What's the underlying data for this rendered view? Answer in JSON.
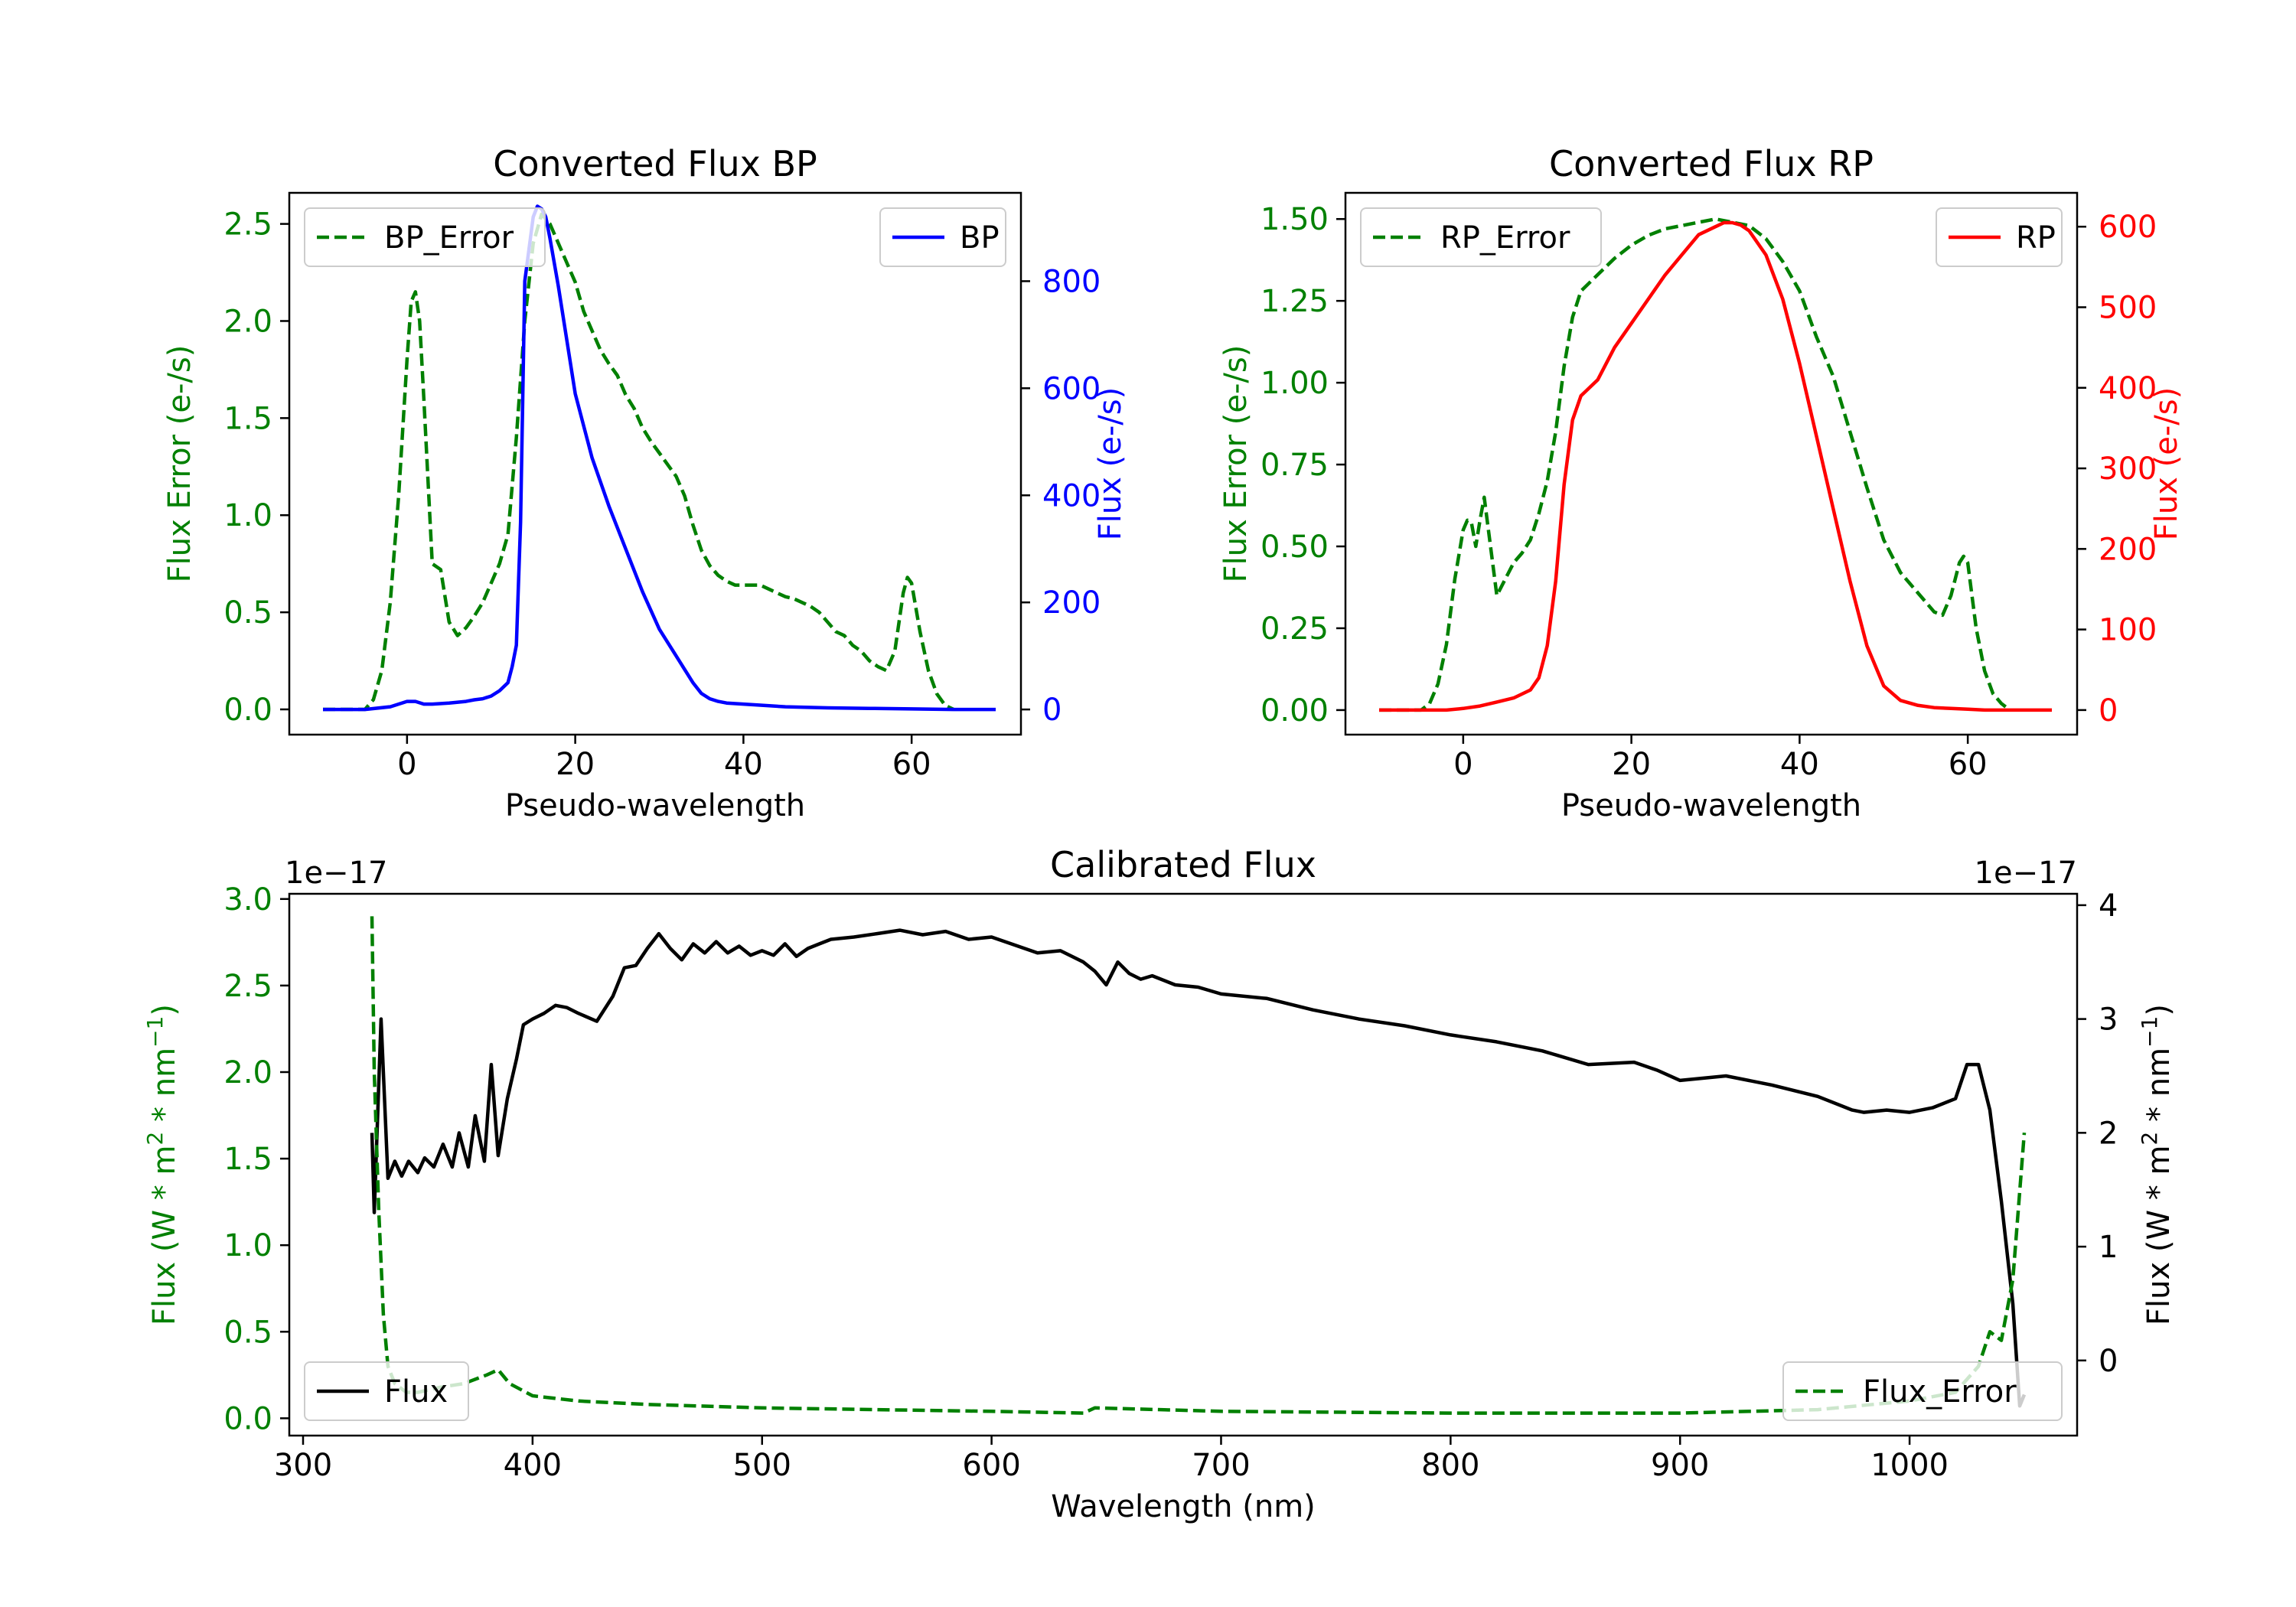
{
  "colors": {
    "axis": "#000000",
    "error": "#008000",
    "bp": "#0000ff",
    "rp": "#ff0000",
    "flux": "#000000"
  },
  "chart_data": [
    {
      "type": "line",
      "title": "Converted Flux BP",
      "xlabel": "Pseudo-wavelength",
      "xlim": [
        -14,
        73
      ],
      "xticks": [
        0,
        20,
        40,
        60
      ],
      "left_axis": {
        "label": "Flux Error (e-/s)",
        "ylim": [
          -0.13,
          2.66
        ],
        "ticks": [
          0.0,
          0.5,
          1.0,
          1.5,
          2.0,
          2.5
        ],
        "tick_labels": [
          "0.0",
          "0.5",
          "1.0",
          "1.5",
          "2.0",
          "2.5"
        ],
        "color": "error"
      },
      "right_axis": {
        "label": "Flux (e-/s)",
        "ylim": [
          -47,
          965
        ],
        "ticks": [
          0,
          200,
          400,
          600,
          800
        ],
        "tick_labels": [
          "0",
          "200",
          "400",
          "600",
          "800"
        ],
        "color": "bp"
      },
      "legend_left": {
        "label": "BP_Error",
        "position": "upper left",
        "style": "dashed"
      },
      "legend_right": {
        "label": "BP",
        "position": "upper right",
        "style": "solid"
      },
      "series": [
        {
          "name": "BP_Error",
          "axis": "left",
          "style": "dashed",
          "color": "error",
          "x": [
            -10,
            -5,
            -4,
            -3,
            -2,
            -1,
            0,
            0.5,
            1,
            1.5,
            2,
            3,
            4,
            5,
            6,
            7,
            8,
            9,
            10,
            11,
            12,
            13,
            14,
            15,
            16,
            17,
            18,
            19,
            20,
            21,
            22,
            23,
            24,
            25,
            26,
            27,
            28,
            29,
            30,
            31,
            32,
            33,
            34,
            35,
            36,
            37,
            38,
            39,
            40,
            41,
            42,
            43,
            44,
            45,
            46,
            47,
            48,
            49,
            50,
            51,
            52,
            53,
            54,
            55,
            56,
            57,
            58,
            59,
            59.5,
            60,
            61,
            62,
            63,
            64,
            65
          ],
          "values": [
            0,
            0,
            0.05,
            0.2,
            0.55,
            1.1,
            1.8,
            2.1,
            2.15,
            2.0,
            1.6,
            0.75,
            0.72,
            0.45,
            0.38,
            0.42,
            0.48,
            0.55,
            0.65,
            0.75,
            0.9,
            1.4,
            2.0,
            2.4,
            2.55,
            2.5,
            2.4,
            2.3,
            2.2,
            2.05,
            1.95,
            1.85,
            1.78,
            1.72,
            1.62,
            1.55,
            1.45,
            1.38,
            1.32,
            1.26,
            1.2,
            1.1,
            0.95,
            0.82,
            0.74,
            0.69,
            0.66,
            0.64,
            0.64,
            0.64,
            0.64,
            0.62,
            0.6,
            0.58,
            0.57,
            0.55,
            0.53,
            0.5,
            0.45,
            0.4,
            0.38,
            0.33,
            0.3,
            0.25,
            0.22,
            0.2,
            0.3,
            0.6,
            0.68,
            0.65,
            0.4,
            0.2,
            0.08,
            0.02,
            0.0
          ]
        },
        {
          "name": "BP",
          "axis": "right",
          "style": "solid",
          "color": "bp",
          "x": [
            -10,
            -5,
            -2,
            0,
            1,
            2,
            3,
            5,
            7,
            8,
            9,
            10,
            11,
            12,
            12.5,
            13,
            13.5,
            14,
            15,
            15.5,
            16,
            16.5,
            17,
            18,
            19,
            20,
            22,
            24,
            26,
            28,
            30,
            32,
            34,
            35,
            36,
            37,
            38,
            40,
            42,
            45,
            50,
            55,
            60,
            65,
            70
          ],
          "values": [
            0,
            0,
            5,
            15,
            15,
            10,
            10,
            12,
            15,
            18,
            20,
            25,
            35,
            50,
            80,
            120,
            350,
            800,
            920,
            940,
            935,
            920,
            880,
            790,
            690,
            590,
            470,
            380,
            300,
            220,
            150,
            100,
            50,
            30,
            20,
            15,
            12,
            10,
            8,
            5,
            3,
            2,
            1,
            0,
            0
          ]
        }
      ]
    },
    {
      "type": "line",
      "title": "Converted Flux RP",
      "xlabel": "Pseudo-wavelength",
      "xlim": [
        -14,
        73
      ],
      "xticks": [
        0,
        20,
        40,
        60
      ],
      "left_axis": {
        "label": "Flux Error (e-/s)",
        "ylim": [
          -0.075,
          1.58
        ],
        "ticks": [
          0.0,
          0.25,
          0.5,
          0.75,
          1.0,
          1.25,
          1.5
        ],
        "tick_labels": [
          "0.00",
          "0.25",
          "0.50",
          "0.75",
          "1.00",
          "1.25",
          "1.50"
        ],
        "color": "error"
      },
      "right_axis": {
        "label": "Flux (e-/s)",
        "ylim": [
          -30.5,
          642
        ],
        "ticks": [
          0,
          100,
          200,
          300,
          400,
          500,
          600
        ],
        "tick_labels": [
          "0",
          "100",
          "200",
          "300",
          "400",
          "500",
          "600"
        ],
        "color": "rp"
      },
      "legend_left": {
        "label": "RP_Error",
        "position": "upper left",
        "style": "dashed"
      },
      "legend_right": {
        "label": "RP",
        "position": "upper right",
        "style": "solid"
      },
      "series": [
        {
          "name": "RP_Error",
          "axis": "left",
          "style": "dashed",
          "color": "error",
          "x": [
            -10,
            -5,
            -4,
            -3,
            -2,
            -1,
            0,
            0.5,
            1,
            1.5,
            2,
            2.5,
            3,
            4,
            5,
            6,
            7,
            8,
            9,
            10,
            11,
            12,
            13,
            14,
            16,
            18,
            20,
            22,
            24,
            26,
            28,
            30,
            32,
            34,
            36,
            38,
            40,
            42,
            44,
            46,
            48,
            50,
            52,
            54,
            55,
            56,
            57,
            58,
            58.5,
            59,
            59.5,
            60,
            61,
            62,
            63,
            64,
            65
          ],
          "values": [
            0,
            0,
            0.02,
            0.08,
            0.2,
            0.4,
            0.55,
            0.58,
            0.57,
            0.5,
            0.58,
            0.65,
            0.55,
            0.35,
            0.4,
            0.45,
            0.48,
            0.52,
            0.6,
            0.7,
            0.85,
            1.05,
            1.2,
            1.28,
            1.33,
            1.38,
            1.42,
            1.45,
            1.47,
            1.48,
            1.49,
            1.5,
            1.49,
            1.48,
            1.44,
            1.37,
            1.28,
            1.14,
            1.02,
            0.85,
            0.68,
            0.52,
            0.42,
            0.36,
            0.33,
            0.3,
            0.29,
            0.35,
            0.4,
            0.45,
            0.47,
            0.45,
            0.25,
            0.12,
            0.05,
            0.02,
            0.0
          ]
        },
        {
          "name": "RP",
          "axis": "right",
          "style": "solid",
          "color": "rp",
          "x": [
            -10,
            -5,
            -2,
            0,
            2,
            4,
            6,
            8,
            9,
            10,
            11,
            12,
            13,
            14,
            15,
            16,
            18,
            20,
            22,
            24,
            26,
            28,
            30,
            31,
            32,
            33,
            34,
            36,
            38,
            40,
            42,
            44,
            46,
            48,
            50,
            52,
            54,
            56,
            58,
            60,
            62,
            65,
            70
          ],
          "values": [
            0,
            0,
            0,
            2,
            5,
            10,
            15,
            25,
            40,
            80,
            160,
            280,
            360,
            390,
            400,
            410,
            450,
            480,
            510,
            540,
            565,
            590,
            600,
            605,
            605,
            602,
            595,
            565,
            510,
            430,
            340,
            250,
            160,
            80,
            30,
            12,
            6,
            3,
            2,
            1,
            0,
            0,
            0
          ]
        }
      ]
    },
    {
      "type": "line",
      "title": "Calibrated Flux",
      "xlabel": "Wavelength (nm)",
      "xlim": [
        294,
        1073
      ],
      "xticks": [
        300,
        400,
        500,
        600,
        700,
        800,
        900,
        1000
      ],
      "left_axis": {
        "label_parts": [
          "Flux (W * m",
          "2",
          " * nm",
          "−1",
          ")"
        ],
        "ylim": [
          -0.1,
          3.03
        ],
        "ticks": [
          0.0,
          0.5,
          1.0,
          1.5,
          2.0,
          2.5,
          3.0
        ],
        "tick_labels": [
          "0.0",
          "0.5",
          "1.0",
          "1.5",
          "2.0",
          "2.5",
          "3.0"
        ],
        "offset_text": "1e−17",
        "color": "error"
      },
      "right_axis": {
        "label_parts": [
          "Flux (W * m",
          "2",
          " * nm",
          "−1",
          ")"
        ],
        "ylim": [
          -0.66,
          4.1
        ],
        "ticks": [
          0,
          1,
          2,
          3,
          4
        ],
        "tick_labels": [
          "0",
          "1",
          "2",
          "3",
          "4"
        ],
        "offset_text": "1e−17",
        "color": "flux"
      },
      "legend_left": {
        "label": "Flux",
        "position": "lower left",
        "style": "solid"
      },
      "legend_right": {
        "label": "Flux_Error",
        "position": "lower right",
        "style": "dashed"
      },
      "series": [
        {
          "name": "Flux",
          "axis": "right",
          "style": "solid",
          "color": "flux",
          "x": [
            330,
            331,
            334,
            337,
            340,
            343,
            346,
            350,
            353,
            357,
            361,
            365,
            368,
            372,
            375,
            379,
            382,
            385,
            389,
            393,
            396,
            400,
            405,
            410,
            415,
            420,
            428,
            435,
            440,
            445,
            450,
            455,
            460,
            465,
            470,
            475,
            480,
            485,
            490,
            495,
            500,
            505,
            510,
            515,
            520,
            525,
            530,
            540,
            550,
            560,
            570,
            580,
            590,
            600,
            610,
            620,
            630,
            640,
            645,
            650,
            655,
            660,
            665,
            670,
            680,
            690,
            700,
            720,
            740,
            760,
            780,
            800,
            820,
            840,
            860,
            880,
            890,
            900,
            920,
            940,
            960,
            975,
            980,
            990,
            1000,
            1010,
            1020,
            1025,
            1030,
            1035,
            1040,
            1045,
            1048,
            1050
          ],
          "values": [
            2.0,
            1.3,
            3.0,
            1.6,
            1.75,
            1.62,
            1.75,
            1.65,
            1.78,
            1.7,
            1.9,
            1.7,
            2.0,
            1.7,
            2.15,
            1.75,
            2.6,
            1.8,
            2.3,
            2.65,
            2.95,
            3.0,
            3.05,
            3.12,
            3.1,
            3.05,
            2.98,
            3.2,
            3.45,
            3.47,
            3.62,
            3.75,
            3.62,
            3.52,
            3.66,
            3.58,
            3.68,
            3.58,
            3.64,
            3.56,
            3.6,
            3.56,
            3.66,
            3.55,
            3.62,
            3.66,
            3.7,
            3.72,
            3.75,
            3.78,
            3.74,
            3.77,
            3.7,
            3.72,
            3.65,
            3.58,
            3.6,
            3.5,
            3.42,
            3.3,
            3.5,
            3.4,
            3.35,
            3.38,
            3.3,
            3.28,
            3.22,
            3.18,
            3.08,
            3.0,
            2.94,
            2.86,
            2.8,
            2.72,
            2.6,
            2.62,
            2.55,
            2.46,
            2.5,
            2.42,
            2.32,
            2.2,
            2.18,
            2.2,
            2.18,
            2.22,
            2.3,
            2.6,
            2.6,
            2.2,
            1.4,
            0.5,
            -0.4,
            -0.3
          ]
        },
        {
          "name": "Flux_Error",
          "axis": "left",
          "style": "dashed",
          "color": "error",
          "x": [
            330,
            331,
            333,
            335,
            337,
            340,
            345,
            350,
            360,
            370,
            380,
            385,
            390,
            400,
            420,
            450,
            500,
            550,
            600,
            640,
            645,
            700,
            800,
            900,
            960,
            1000,
            1020,
            1030,
            1035,
            1040,
            1045,
            1050
          ],
          "values": [
            2.9,
            2.0,
            1.2,
            0.6,
            0.3,
            0.2,
            0.15,
            0.15,
            0.18,
            0.2,
            0.25,
            0.28,
            0.2,
            0.13,
            0.1,
            0.08,
            0.06,
            0.05,
            0.04,
            0.03,
            0.06,
            0.04,
            0.03,
            0.03,
            0.05,
            0.1,
            0.15,
            0.3,
            0.5,
            0.45,
            0.8,
            1.65
          ]
        }
      ]
    }
  ]
}
